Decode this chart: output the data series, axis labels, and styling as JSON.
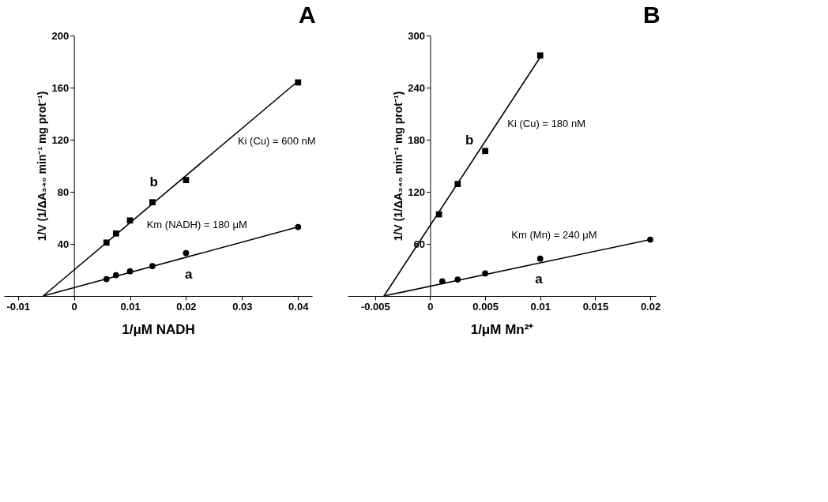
{
  "chart_data": [
    {
      "type": "scatter",
      "title": "A",
      "xlabel": "1/μM  NADH",
      "ylabel": "1/V (1/ΔA₃₄₀ min⁻¹ mg prot⁻¹)",
      "xlim": [
        -0.0125,
        0.0425
      ],
      "xticks": [
        -0.01,
        0,
        0.01,
        0.02,
        0.03,
        0.04
      ],
      "ylim": [
        0,
        200
      ],
      "yticks": [
        40,
        80,
        120,
        160,
        200
      ],
      "grid": false,
      "series": [
        {
          "name": "b",
          "marker": "square",
          "color": "#000000",
          "x": [
            0.0058,
            0.0075,
            0.01,
            0.014,
            0.02,
            0.04
          ],
          "values": [
            41,
            48,
            58,
            72,
            89,
            164
          ]
        },
        {
          "name": "a",
          "marker": "circle",
          "color": "#000000",
          "x": [
            0.0058,
            0.0075,
            0.01,
            0.014,
            0.02,
            0.04
          ],
          "values": [
            13,
            16,
            19,
            23,
            33,
            53
          ]
        },
        {
          "type": "line",
          "color": "#000000",
          "line_style": "solid",
          "x": [
            -0.0055,
            0.04
          ],
          "values": [
            0,
            165
          ]
        },
        {
          "type": "line",
          "color": "#000000",
          "line_style": "solid",
          "x": [
            -0.0055,
            0.04
          ],
          "values": [
            0,
            53
          ]
        }
      ],
      "annotations": [
        "Ki (Cu) = 600 nM",
        "Km (NADH) = 180 μM"
      ]
    },
    {
      "type": "scatter",
      "title": "B",
      "xlabel": "1/μM Mn²⁺",
      "ylabel": "1/V (1/ΔA₃₄₀ min⁻¹ mg prot⁻¹)",
      "xlim": [
        -0.0075,
        0.0205
      ],
      "xticks": [
        -0.005,
        0,
        0.005,
        0.01,
        0.015,
        0.02
      ],
      "ylim": [
        0,
        300
      ],
      "yticks": [
        60,
        120,
        180,
        240,
        300
      ],
      "grid": false,
      "series": [
        {
          "name": "b",
          "marker": "square",
          "color": "#000000",
          "x": [
            0.0008,
            0.0025,
            0.005,
            0.01
          ],
          "values": [
            94,
            129,
            167,
            277
          ]
        },
        {
          "name": "a",
          "marker": "circle",
          "color": "#000000",
          "x": [
            0.0011,
            0.0025,
            0.005,
            0.01,
            0.02
          ],
          "values": [
            17,
            19,
            26,
            43,
            65
          ]
        },
        {
          "type": "line",
          "color": "#000000",
          "line_style": "solid",
          "x": [
            -0.0042,
            0.01
          ],
          "values": [
            0,
            275
          ]
        },
        {
          "type": "line",
          "color": "#000000",
          "line_style": "solid",
          "x": [
            -0.0042,
            0.02
          ],
          "values": [
            0,
            65
          ]
        }
      ],
      "annotations": [
        "Ki (Cu) = 180 nM",
        "Km (Mn) = 240 μM"
      ]
    }
  ]
}
